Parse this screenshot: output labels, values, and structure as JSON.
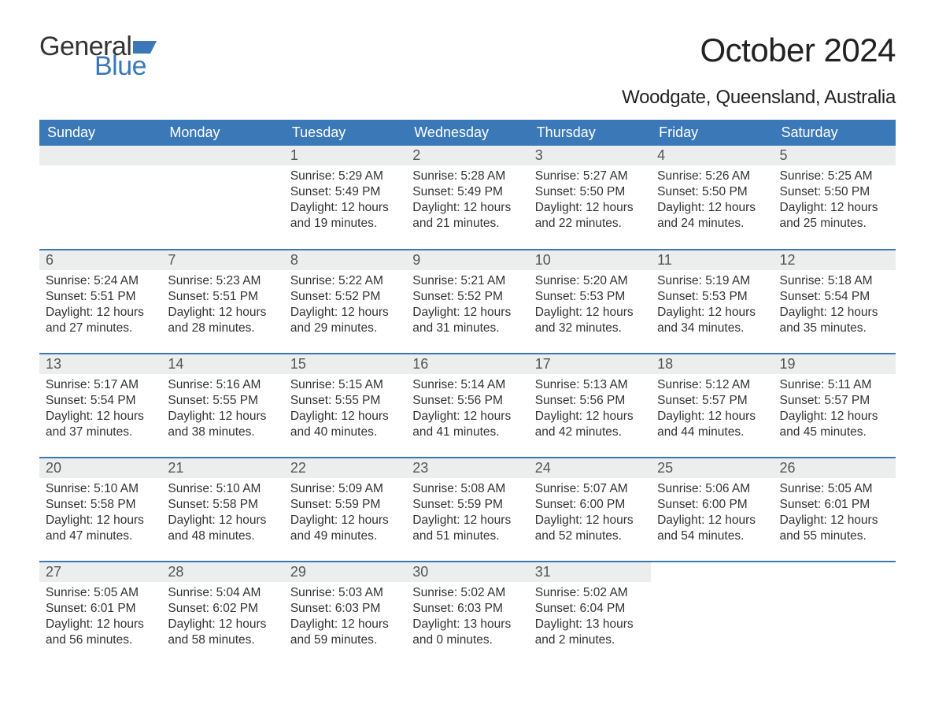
{
  "logo": {
    "text1": "General",
    "text2": "Blue",
    "flag_color": "#3a78b8"
  },
  "title": "October 2024",
  "location": "Woodgate, Queensland, Australia",
  "colors": {
    "header_bg": "#3a78b8",
    "header_text": "#ffffff",
    "daynum_bg": "#eceded",
    "border": "#3a78b8",
    "body_bg": "#ffffff",
    "text": "#333333"
  },
  "weekdays": [
    "Sunday",
    "Monday",
    "Tuesday",
    "Wednesday",
    "Thursday",
    "Friday",
    "Saturday"
  ],
  "weeks": [
    [
      null,
      null,
      {
        "n": "1",
        "sr": "Sunrise: 5:29 AM",
        "ss": "Sunset: 5:49 PM",
        "d1": "Daylight: 12 hours",
        "d2": "and 19 minutes."
      },
      {
        "n": "2",
        "sr": "Sunrise: 5:28 AM",
        "ss": "Sunset: 5:49 PM",
        "d1": "Daylight: 12 hours",
        "d2": "and 21 minutes."
      },
      {
        "n": "3",
        "sr": "Sunrise: 5:27 AM",
        "ss": "Sunset: 5:50 PM",
        "d1": "Daylight: 12 hours",
        "d2": "and 22 minutes."
      },
      {
        "n": "4",
        "sr": "Sunrise: 5:26 AM",
        "ss": "Sunset: 5:50 PM",
        "d1": "Daylight: 12 hours",
        "d2": "and 24 minutes."
      },
      {
        "n": "5",
        "sr": "Sunrise: 5:25 AM",
        "ss": "Sunset: 5:50 PM",
        "d1": "Daylight: 12 hours",
        "d2": "and 25 minutes."
      }
    ],
    [
      {
        "n": "6",
        "sr": "Sunrise: 5:24 AM",
        "ss": "Sunset: 5:51 PM",
        "d1": "Daylight: 12 hours",
        "d2": "and 27 minutes."
      },
      {
        "n": "7",
        "sr": "Sunrise: 5:23 AM",
        "ss": "Sunset: 5:51 PM",
        "d1": "Daylight: 12 hours",
        "d2": "and 28 minutes."
      },
      {
        "n": "8",
        "sr": "Sunrise: 5:22 AM",
        "ss": "Sunset: 5:52 PM",
        "d1": "Daylight: 12 hours",
        "d2": "and 29 minutes."
      },
      {
        "n": "9",
        "sr": "Sunrise: 5:21 AM",
        "ss": "Sunset: 5:52 PM",
        "d1": "Daylight: 12 hours",
        "d2": "and 31 minutes."
      },
      {
        "n": "10",
        "sr": "Sunrise: 5:20 AM",
        "ss": "Sunset: 5:53 PM",
        "d1": "Daylight: 12 hours",
        "d2": "and 32 minutes."
      },
      {
        "n": "11",
        "sr": "Sunrise: 5:19 AM",
        "ss": "Sunset: 5:53 PM",
        "d1": "Daylight: 12 hours",
        "d2": "and 34 minutes."
      },
      {
        "n": "12",
        "sr": "Sunrise: 5:18 AM",
        "ss": "Sunset: 5:54 PM",
        "d1": "Daylight: 12 hours",
        "d2": "and 35 minutes."
      }
    ],
    [
      {
        "n": "13",
        "sr": "Sunrise: 5:17 AM",
        "ss": "Sunset: 5:54 PM",
        "d1": "Daylight: 12 hours",
        "d2": "and 37 minutes."
      },
      {
        "n": "14",
        "sr": "Sunrise: 5:16 AM",
        "ss": "Sunset: 5:55 PM",
        "d1": "Daylight: 12 hours",
        "d2": "and 38 minutes."
      },
      {
        "n": "15",
        "sr": "Sunrise: 5:15 AM",
        "ss": "Sunset: 5:55 PM",
        "d1": "Daylight: 12 hours",
        "d2": "and 40 minutes."
      },
      {
        "n": "16",
        "sr": "Sunrise: 5:14 AM",
        "ss": "Sunset: 5:56 PM",
        "d1": "Daylight: 12 hours",
        "d2": "and 41 minutes."
      },
      {
        "n": "17",
        "sr": "Sunrise: 5:13 AM",
        "ss": "Sunset: 5:56 PM",
        "d1": "Daylight: 12 hours",
        "d2": "and 42 minutes."
      },
      {
        "n": "18",
        "sr": "Sunrise: 5:12 AM",
        "ss": "Sunset: 5:57 PM",
        "d1": "Daylight: 12 hours",
        "d2": "and 44 minutes."
      },
      {
        "n": "19",
        "sr": "Sunrise: 5:11 AM",
        "ss": "Sunset: 5:57 PM",
        "d1": "Daylight: 12 hours",
        "d2": "and 45 minutes."
      }
    ],
    [
      {
        "n": "20",
        "sr": "Sunrise: 5:10 AM",
        "ss": "Sunset: 5:58 PM",
        "d1": "Daylight: 12 hours",
        "d2": "and 47 minutes."
      },
      {
        "n": "21",
        "sr": "Sunrise: 5:10 AM",
        "ss": "Sunset: 5:58 PM",
        "d1": "Daylight: 12 hours",
        "d2": "and 48 minutes."
      },
      {
        "n": "22",
        "sr": "Sunrise: 5:09 AM",
        "ss": "Sunset: 5:59 PM",
        "d1": "Daylight: 12 hours",
        "d2": "and 49 minutes."
      },
      {
        "n": "23",
        "sr": "Sunrise: 5:08 AM",
        "ss": "Sunset: 5:59 PM",
        "d1": "Daylight: 12 hours",
        "d2": "and 51 minutes."
      },
      {
        "n": "24",
        "sr": "Sunrise: 5:07 AM",
        "ss": "Sunset: 6:00 PM",
        "d1": "Daylight: 12 hours",
        "d2": "and 52 minutes."
      },
      {
        "n": "25",
        "sr": "Sunrise: 5:06 AM",
        "ss": "Sunset: 6:00 PM",
        "d1": "Daylight: 12 hours",
        "d2": "and 54 minutes."
      },
      {
        "n": "26",
        "sr": "Sunrise: 5:05 AM",
        "ss": "Sunset: 6:01 PM",
        "d1": "Daylight: 12 hours",
        "d2": "and 55 minutes."
      }
    ],
    [
      {
        "n": "27",
        "sr": "Sunrise: 5:05 AM",
        "ss": "Sunset: 6:01 PM",
        "d1": "Daylight: 12 hours",
        "d2": "and 56 minutes."
      },
      {
        "n": "28",
        "sr": "Sunrise: 5:04 AM",
        "ss": "Sunset: 6:02 PM",
        "d1": "Daylight: 12 hours",
        "d2": "and 58 minutes."
      },
      {
        "n": "29",
        "sr": "Sunrise: 5:03 AM",
        "ss": "Sunset: 6:03 PM",
        "d1": "Daylight: 12 hours",
        "d2": "and 59 minutes."
      },
      {
        "n": "30",
        "sr": "Sunrise: 5:02 AM",
        "ss": "Sunset: 6:03 PM",
        "d1": "Daylight: 13 hours",
        "d2": "and 0 minutes."
      },
      {
        "n": "31",
        "sr": "Sunrise: 5:02 AM",
        "ss": "Sunset: 6:04 PM",
        "d1": "Daylight: 13 hours",
        "d2": "and 2 minutes."
      },
      null,
      null
    ]
  ]
}
